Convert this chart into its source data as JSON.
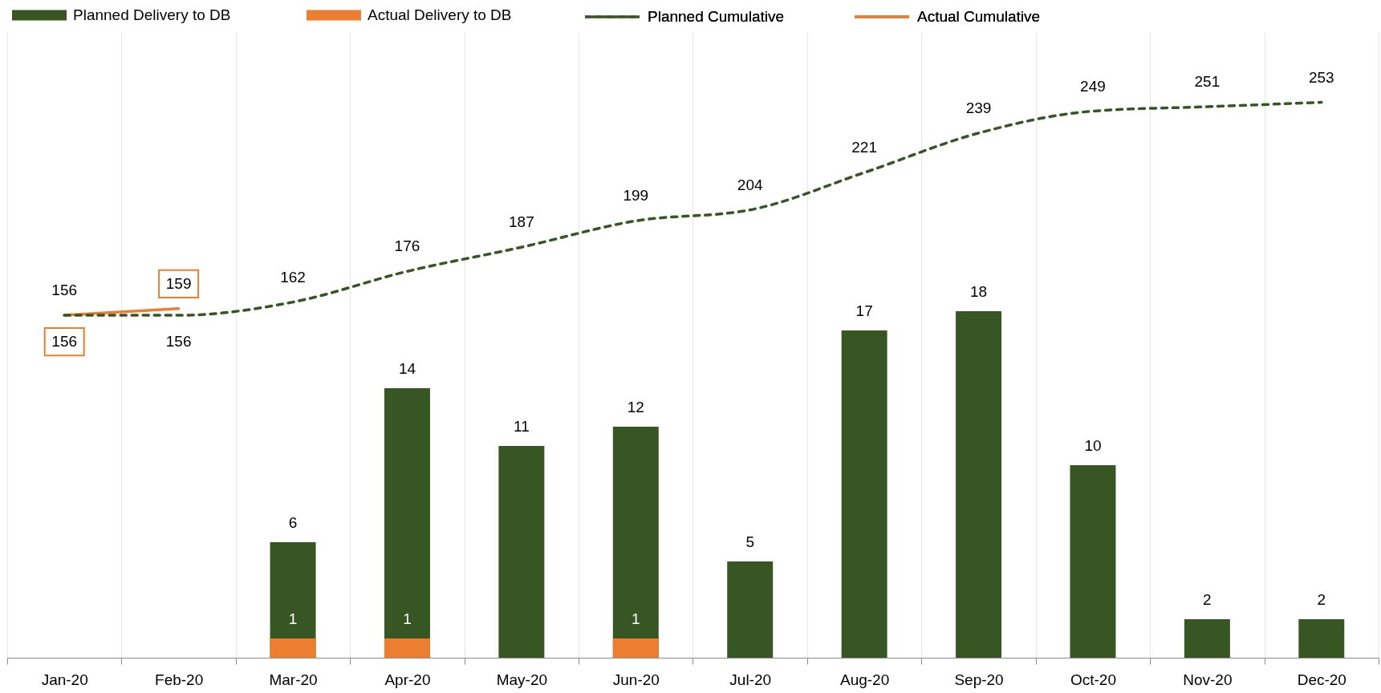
{
  "chart_data": {
    "type": "bar",
    "categories": [
      "Jan-20",
      "Feb-20",
      "Mar-20",
      "Apr-20",
      "May-20",
      "Jun-20",
      "Jul-20",
      "Aug-20",
      "Sep-20",
      "Oct-20",
      "Nov-20",
      "Dec-20"
    ],
    "series": [
      {
        "name": "Planned Delivery to DB",
        "color": "#375623",
        "values": [
          null,
          null,
          6,
          14,
          11,
          12,
          5,
          17,
          18,
          10,
          2,
          2
        ]
      },
      {
        "name": "Actual Delivery to DB",
        "color": "#ed7d31",
        "values": [
          null,
          null,
          1,
          1,
          null,
          1,
          null,
          null,
          null,
          null,
          null,
          null
        ]
      },
      {
        "name": "Planned Cumulative",
        "type": "line",
        "axis": "y2",
        "color": "#375623",
        "line_style": "dashed",
        "values": [
          156,
          156,
          162,
          176,
          187,
          199,
          204,
          221,
          239,
          249,
          251,
          253
        ]
      },
      {
        "name": "Actual Cumulative",
        "type": "line",
        "axis": "y2",
        "color": "#ed7d31",
        "line_style": "solid",
        "values": [
          156,
          159,
          null,
          null,
          null,
          null,
          null,
          null,
          null,
          null,
          null,
          null
        ]
      }
    ],
    "ylim": [
      0,
      32.5
    ],
    "y2lim": [
      0,
      285
    ],
    "tick_labels": "x",
    "grid": "x",
    "legend": "top left",
    "data_labels": true
  }
}
